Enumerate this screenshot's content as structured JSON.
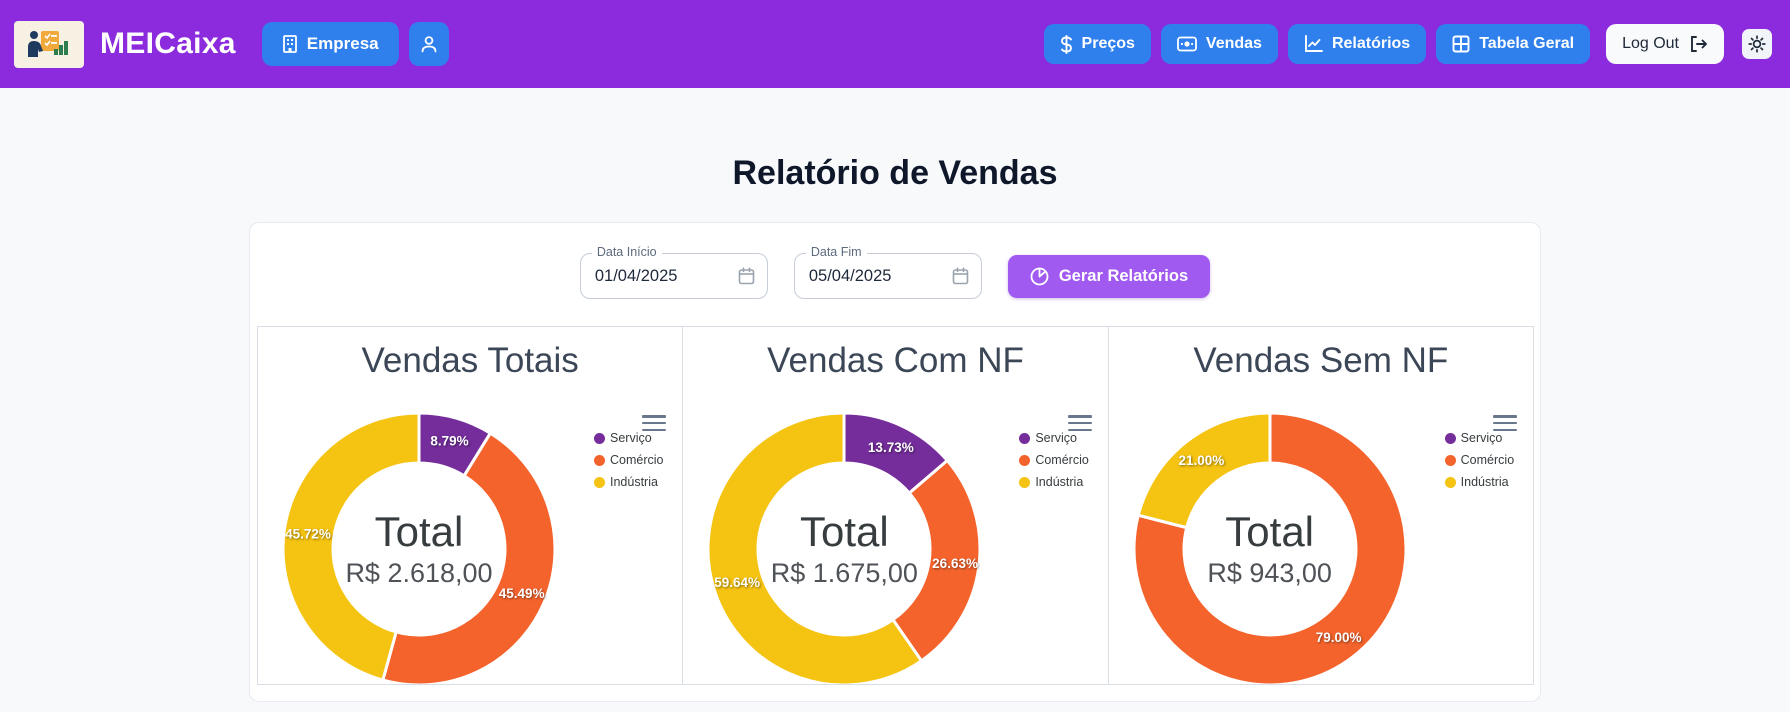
{
  "header": {
    "brand": "MEICaixa",
    "nav_left": [
      {
        "label": "Empresa",
        "icon": "building-icon"
      }
    ],
    "nav_right": [
      {
        "label": "Preços",
        "icon": "dollar-icon"
      },
      {
        "label": "Vendas",
        "icon": "money-icon"
      },
      {
        "label": "Relatórios",
        "icon": "line-chart-icon"
      },
      {
        "label": "Tabela Geral",
        "icon": "table-icon"
      }
    ],
    "logout_label": "Log Out",
    "colors": {
      "header_bg": "#8C2BDE",
      "nav_button_blue": "#2F80ED",
      "logout_bg": "#F8FAFC"
    }
  },
  "page": {
    "title": "Relatório de Vendas"
  },
  "filters": {
    "start": {
      "label": "Data Início",
      "value": "01/04/2025"
    },
    "end": {
      "label": "Data Fim",
      "value": "05/04/2025"
    },
    "generate_label": "Gerar Relatórios",
    "generate_color": "#A05AF0"
  },
  "chart_data": [
    {
      "type": "pie",
      "variant": "donut",
      "title": "Vendas Totais",
      "center_label": "Total",
      "center_value": "R$ 2.618,00",
      "categories": [
        "Serviço",
        "Comércio",
        "Indústria"
      ],
      "values_percent": [
        8.79,
        45.49,
        45.72
      ],
      "slice_labels": [
        "8.79%",
        "45.49%",
        "45.72%"
      ],
      "colors": [
        "#752D9C",
        "#F4632C",
        "#F5C311"
      ],
      "legend_position": "right"
    },
    {
      "type": "pie",
      "variant": "donut",
      "title": "Vendas Com NF",
      "center_label": "Total",
      "center_value": "R$ 1.675,00",
      "categories": [
        "Serviço",
        "Comércio",
        "Indústria"
      ],
      "values_percent": [
        13.73,
        26.63,
        59.64
      ],
      "slice_labels": [
        "13.73%",
        "26.63%",
        "59.64%"
      ],
      "colors": [
        "#752D9C",
        "#F4632C",
        "#F5C311"
      ],
      "legend_position": "right"
    },
    {
      "type": "pie",
      "variant": "donut",
      "title": "Vendas Sem NF",
      "center_label": "Total",
      "center_value": "R$ 943,00",
      "categories": [
        "Serviço",
        "Comércio",
        "Indústria"
      ],
      "values_percent": [
        0,
        79.0,
        21.0
      ],
      "slice_labels": [
        "",
        "79.00%",
        "21.00%"
      ],
      "colors": [
        "#752D9C",
        "#F4632C",
        "#F5C311"
      ],
      "legend_position": "right"
    }
  ]
}
